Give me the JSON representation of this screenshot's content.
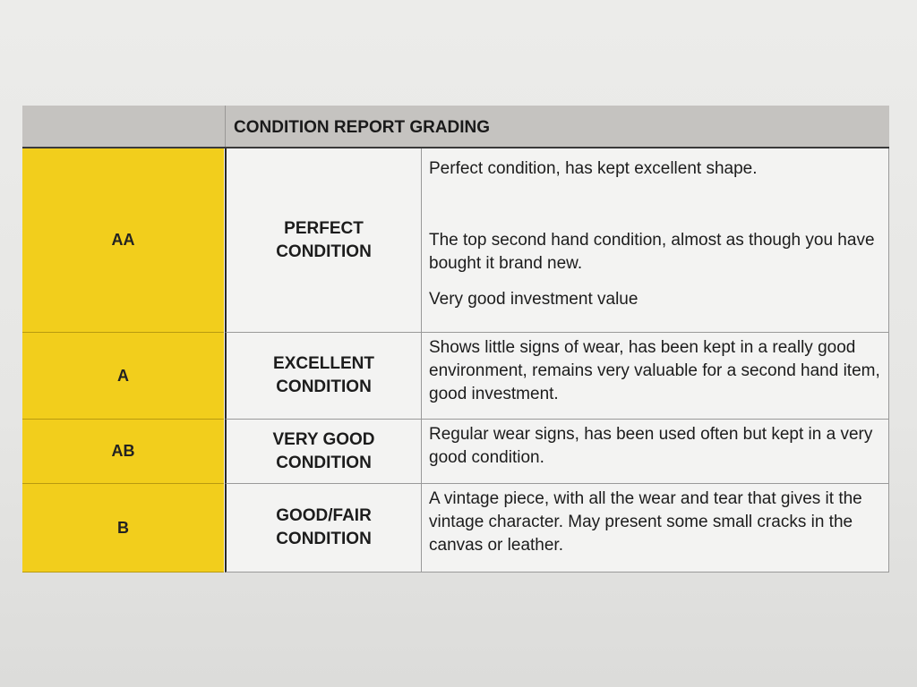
{
  "table": {
    "header": "CONDITION REPORT GRADING",
    "grade_color": "#f2ce1c",
    "rows": [
      {
        "grade": "AA",
        "condition_line1": "PERFECT",
        "condition_line2": "CONDITION",
        "descriptions": [
          "Perfect condition, has kept excellent shape.",
          "The top second hand condition, almost as though you have bought it brand new.",
          "Very good investment value"
        ]
      },
      {
        "grade": "A",
        "condition_line1": "EXCELLENT",
        "condition_line2": "CONDITION",
        "descriptions": [
          "Shows little signs of wear, has been kept in a really good environment, remains very valuable for a second hand item, good investment."
        ]
      },
      {
        "grade": "AB",
        "condition_line1": "VERY GOOD",
        "condition_line2": "CONDITION",
        "descriptions": [
          "Regular wear signs, has been used often but kept in a very good condition."
        ]
      },
      {
        "grade": "B",
        "condition_line1": "GOOD/FAIR",
        "condition_line2": "CONDITION",
        "descriptions": [
          "A vintage piece, with all the wear and tear that gives it the vintage character. May present some small cracks in the canvas or leather."
        ]
      }
    ]
  }
}
